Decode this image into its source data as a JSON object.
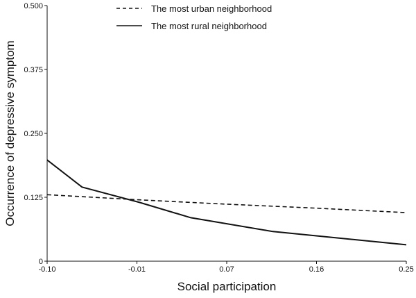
{
  "chart_data": {
    "type": "line",
    "title": "",
    "xlabel": "Social participation",
    "ylabel": "Occurrence of depressive symptom",
    "xlim": [
      -0.1,
      0.25
    ],
    "ylim": [
      0,
      0.5
    ],
    "x_ticks": [
      "-0.10",
      "-0.01",
      "0.07",
      "0.16",
      "0.25"
    ],
    "y_ticks": [
      "0",
      "0.125",
      "0.250",
      "0.375",
      "0.500"
    ],
    "grid": false,
    "legend_position": "top",
    "series": [
      {
        "name": "The most urban neighborhood",
        "style": "dashed",
        "color": "#111111",
        "x": [
          -0.1,
          -0.01,
          0.07,
          0.16,
          0.25
        ],
        "y": [
          0.13,
          0.12,
          0.112,
          0.104,
          0.095
        ]
      },
      {
        "name": "The most rural neighborhood",
        "style": "solid",
        "color": "#111111",
        "x": [
          -0.1,
          -0.066,
          -0.01,
          0.04,
          0.12,
          0.25
        ],
        "y": [
          0.198,
          0.145,
          0.115,
          0.085,
          0.058,
          0.032
        ]
      }
    ]
  }
}
